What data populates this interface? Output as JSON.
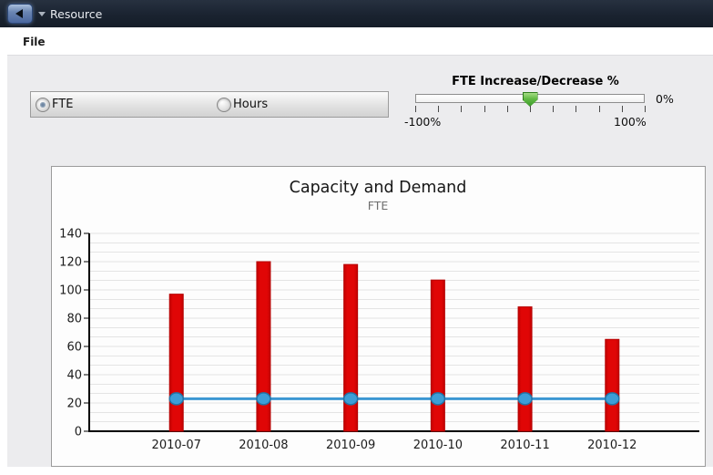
{
  "window": {
    "title": "Resource"
  },
  "icons": {
    "back": "◀",
    "dropdown": "▾"
  },
  "menubar": {
    "file_label": "File"
  },
  "toggle": {
    "options": [
      {
        "label": "FTE",
        "selected": true
      },
      {
        "label": "Hours",
        "selected": false
      }
    ]
  },
  "slider": {
    "title": "FTE Increase/Decrease %",
    "left_label": "-100%",
    "right_label": "100%",
    "value_label": "0%",
    "value": 0,
    "min": -100,
    "max": 100,
    "tick_count": 11
  },
  "colors": {
    "titlebar_bg": "#1a2330",
    "bar_red": "#e00606",
    "line_blue": "#3b97d3",
    "thumb_green": "#4aa631"
  },
  "chart_data": {
    "type": "bar+line",
    "title": "Capacity and Demand",
    "subtitle": "FTE",
    "categories": [
      "2010-07",
      "2010-08",
      "2010-09",
      "2010-10",
      "2010-11",
      "2010-12"
    ],
    "series": [
      {
        "type": "bar",
        "color": "#e00606",
        "values": [
          97,
          120,
          118,
          107,
          88,
          65
        ]
      },
      {
        "type": "line",
        "color": "#3b97d3",
        "values": [
          23,
          23,
          23,
          23,
          23,
          23
        ]
      }
    ],
    "ylim": [
      0,
      140
    ],
    "ytick_step": 20,
    "minor_grid_divisions": 21,
    "grid": true,
    "legend": "none"
  }
}
